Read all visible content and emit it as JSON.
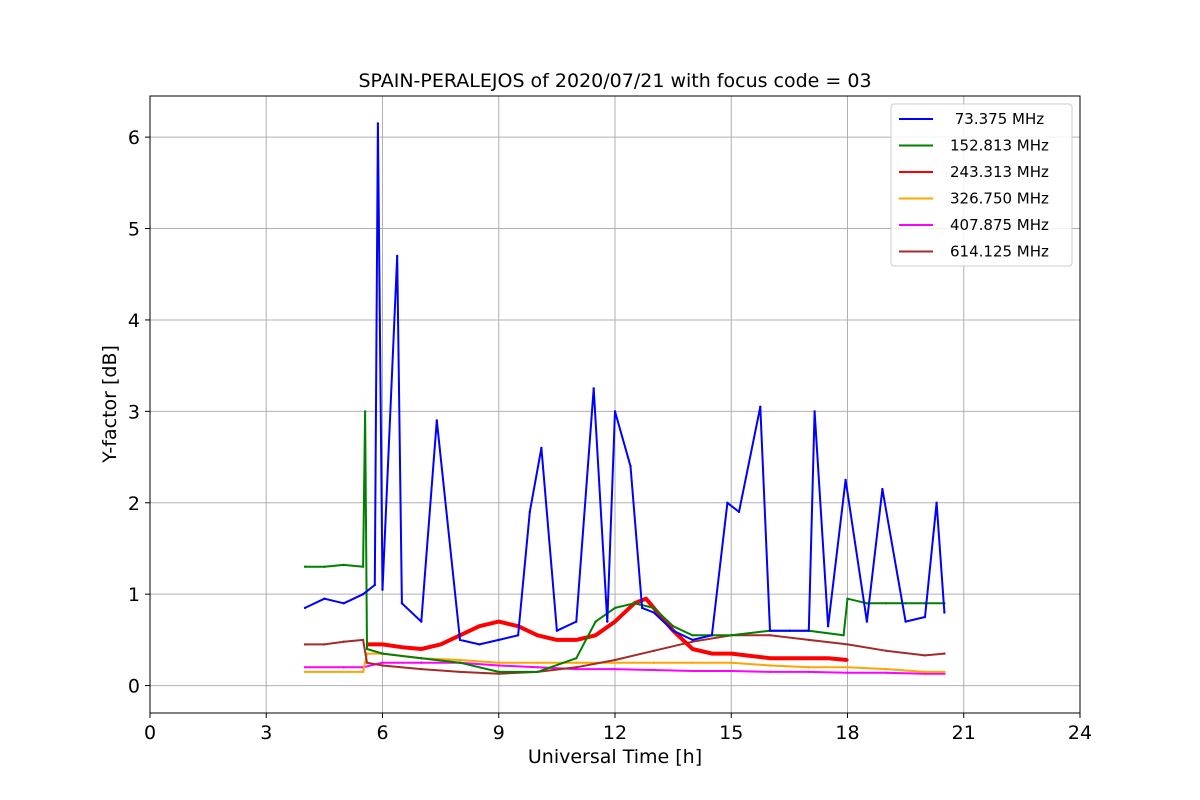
{
  "chart_data": {
    "type": "line",
    "title": "SPAIN-PERALEJOS of 2020/07/21 with focus code = 03",
    "xlabel": "Universal Time [h]",
    "ylabel": "Y-factor [dB]",
    "xlim": [
      0,
      24
    ],
    "ylim": [
      -0.3,
      6.45
    ],
    "xticks": [
      0,
      3,
      6,
      9,
      12,
      15,
      18,
      21,
      24
    ],
    "yticks": [
      0,
      1,
      2,
      3,
      4,
      5,
      6
    ],
    "xtick_labels": [
      "0",
      "3",
      "6",
      "9",
      "12",
      "15",
      "18",
      "21",
      "24"
    ],
    "ytick_labels": [
      "0",
      "1",
      "2",
      "3",
      "4",
      "5",
      "6"
    ],
    "grid": true,
    "legend_position": "upper right",
    "series": [
      {
        "name": " 73.375 MHz",
        "color": "#0000ff",
        "x": [
          4.0,
          4.5,
          5.0,
          5.5,
          5.8,
          5.88,
          6.0,
          6.38,
          6.5,
          7.0,
          7.4,
          8.0,
          8.5,
          9.0,
          9.5,
          9.8,
          10.1,
          10.5,
          11.0,
          11.45,
          11.8,
          12.0,
          12.4,
          12.7,
          13.0,
          13.5,
          14.0,
          14.5,
          14.9,
          15.2,
          15.75,
          16.0,
          16.5,
          17.0,
          17.15,
          17.5,
          17.95,
          18.5,
          18.9,
          19.5,
          20.0,
          20.3,
          20.5
        ],
        "y": [
          0.85,
          0.95,
          0.9,
          1.0,
          1.1,
          6.15,
          1.05,
          4.7,
          0.9,
          0.7,
          2.9,
          0.5,
          0.45,
          0.5,
          0.55,
          1.9,
          2.6,
          0.6,
          0.7,
          3.25,
          0.7,
          3.0,
          2.4,
          0.85,
          0.8,
          0.6,
          0.5,
          0.55,
          2.0,
          1.9,
          3.05,
          0.6,
          0.6,
          0.6,
          3.0,
          0.65,
          2.25,
          0.7,
          2.15,
          0.7,
          0.75,
          2.0,
          0.8
        ]
      },
      {
        "name": "152.813 MHz",
        "color": "#008000",
        "x": [
          4.0,
          4.5,
          5.0,
          5.5,
          5.55,
          5.6,
          6.0,
          7.0,
          8.0,
          9.0,
          10.0,
          11.0,
          11.5,
          12.0,
          12.5,
          13.0,
          13.5,
          14.0,
          15.0,
          16.0,
          17.0,
          17.9,
          18.0,
          18.5,
          19.0,
          19.5,
          20.0,
          20.5
        ],
        "y": [
          1.3,
          1.3,
          1.32,
          1.3,
          3.0,
          0.4,
          0.35,
          0.3,
          0.25,
          0.15,
          0.15,
          0.3,
          0.7,
          0.85,
          0.9,
          0.85,
          0.65,
          0.55,
          0.55,
          0.6,
          0.6,
          0.55,
          0.95,
          0.9,
          0.9,
          0.9,
          0.9,
          0.9
        ]
      },
      {
        "name": "243.313 MHz",
        "color": "#ff0000",
        "x": [
          5.6,
          6.0,
          6.5,
          7.0,
          7.5,
          8.0,
          8.5,
          9.0,
          9.5,
          10.0,
          10.5,
          11.0,
          11.5,
          12.0,
          12.5,
          12.8,
          13.0,
          13.5,
          14.0,
          14.5,
          15.0,
          16.0,
          17.0,
          17.5,
          18.0
        ],
        "y": [
          0.45,
          0.45,
          0.42,
          0.4,
          0.45,
          0.55,
          0.65,
          0.7,
          0.65,
          0.55,
          0.5,
          0.5,
          0.55,
          0.7,
          0.9,
          0.95,
          0.85,
          0.6,
          0.4,
          0.35,
          0.35,
          0.3,
          0.3,
          0.3,
          0.28
        ]
      },
      {
        "name": "326.750 MHz",
        "color": "#ffa500",
        "x": [
          4.0,
          5.0,
          5.5,
          5.6,
          6.0,
          7.0,
          8.0,
          9.0,
          10.0,
          11.0,
          12.0,
          13.0,
          14.0,
          15.0,
          16.0,
          17.0,
          18.0,
          19.0,
          20.0,
          20.5
        ],
        "y": [
          0.15,
          0.15,
          0.15,
          0.35,
          0.35,
          0.3,
          0.28,
          0.25,
          0.25,
          0.25,
          0.25,
          0.25,
          0.25,
          0.25,
          0.22,
          0.2,
          0.2,
          0.18,
          0.15,
          0.15
        ]
      },
      {
        "name": "407.875 MHz",
        "color": "#ff00ff",
        "x": [
          4.0,
          5.0,
          5.5,
          6.0,
          7.0,
          8.0,
          9.0,
          10.0,
          11.0,
          12.0,
          13.0,
          14.0,
          15.0,
          16.0,
          17.0,
          18.0,
          19.0,
          20.0,
          20.5
        ],
        "y": [
          0.2,
          0.2,
          0.2,
          0.25,
          0.25,
          0.25,
          0.22,
          0.2,
          0.18,
          0.18,
          0.17,
          0.16,
          0.16,
          0.15,
          0.15,
          0.14,
          0.14,
          0.13,
          0.13
        ]
      },
      {
        "name": "614.125 MHz",
        "color": "#a52a2a",
        "x": [
          4.0,
          4.5,
          5.0,
          5.5,
          5.6,
          6.0,
          7.0,
          8.0,
          9.0,
          10.0,
          11.0,
          12.0,
          13.0,
          14.0,
          15.0,
          16.0,
          17.0,
          18.0,
          19.0,
          20.0,
          20.5
        ],
        "y": [
          0.45,
          0.45,
          0.48,
          0.5,
          0.25,
          0.22,
          0.18,
          0.15,
          0.13,
          0.15,
          0.2,
          0.28,
          0.38,
          0.48,
          0.55,
          0.55,
          0.5,
          0.45,
          0.38,
          0.33,
          0.35
        ]
      }
    ]
  }
}
